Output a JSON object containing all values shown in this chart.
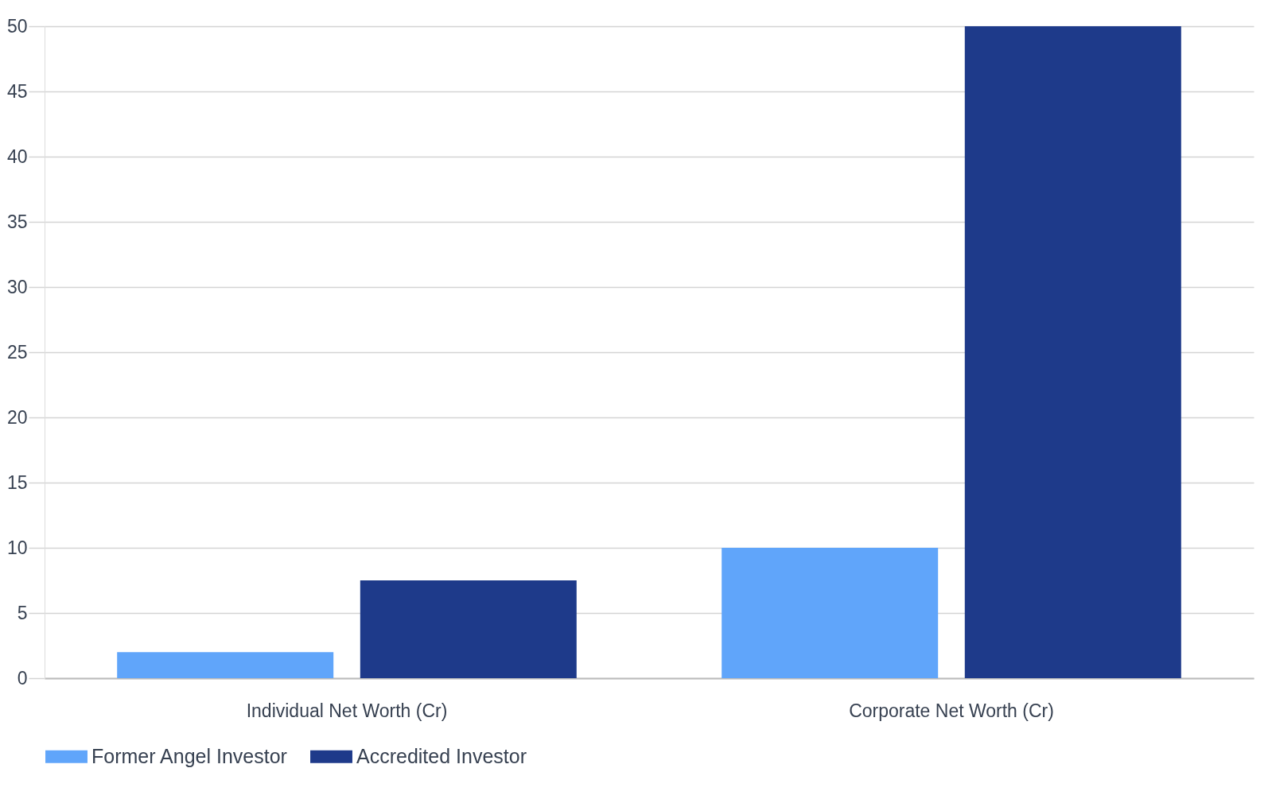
{
  "chart_data": {
    "type": "bar",
    "categories": [
      "Individual Net Worth (Cr)",
      "Corporate Net Worth (Cr)"
    ],
    "series": [
      {
        "name": "Former Angel Investor",
        "color": "#60a5fa",
        "values": [
          2,
          10
        ]
      },
      {
        "name": "Accredited Investor",
        "color": "#1e3a8a",
        "values": [
          7.5,
          50
        ]
      }
    ],
    "ylim": [
      0,
      50
    ],
    "yticks": [
      0,
      5,
      10,
      15,
      20,
      25,
      30,
      35,
      40,
      45,
      50
    ],
    "grid": "y",
    "legend": "bottom"
  }
}
